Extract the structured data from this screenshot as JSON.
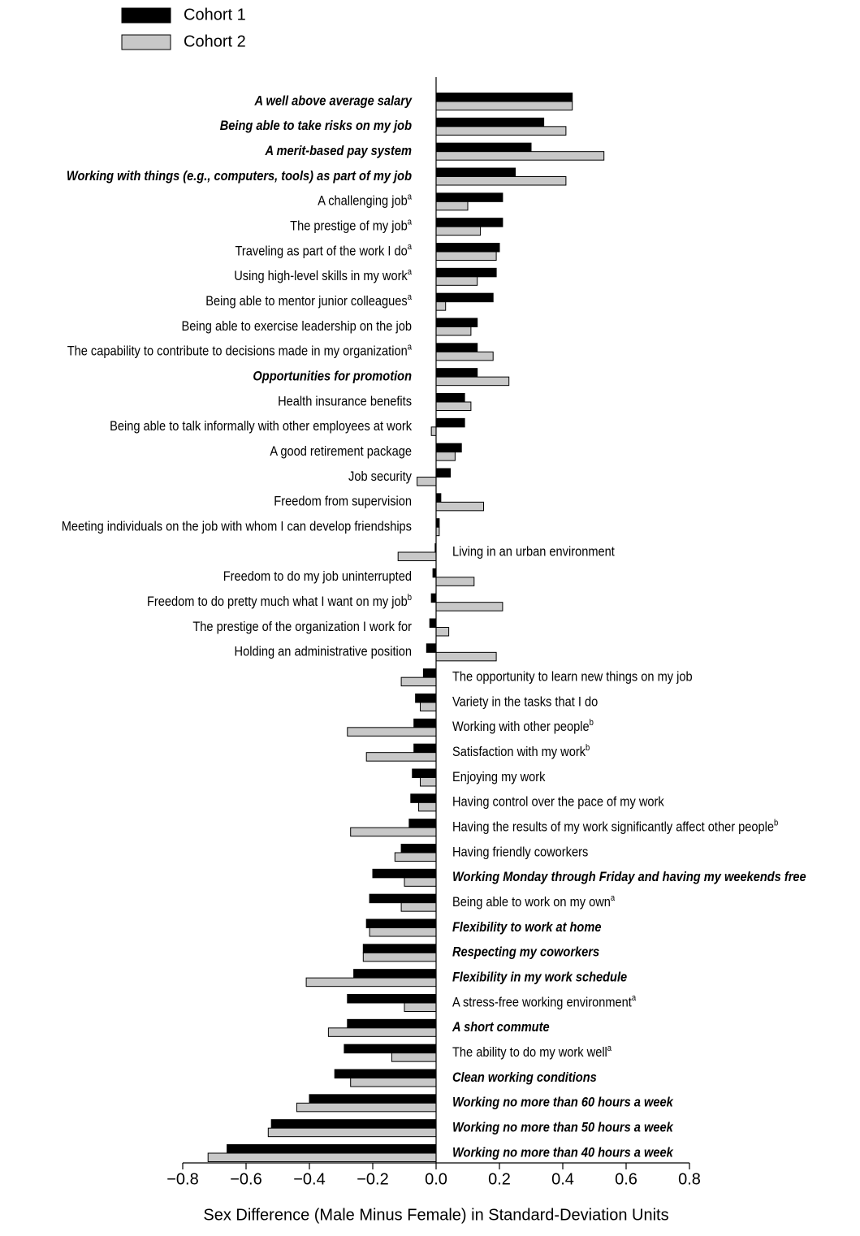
{
  "chart_data": {
    "type": "hbar",
    "x_axis_label": "Sex Difference (Male Minus Female) in Standard-Deviation Units",
    "categories": [
      "A well above average salary",
      "Being able to take risks on my job",
      "A merit-based pay system",
      "Working with things (e.g., computers, tools) as part of my job",
      "A challenging job",
      "The prestige of my job",
      "Traveling as part of the work I do",
      "Using high-level skills in my work",
      "Being able to mentor junior colleagues",
      "Being able to exercise leadership on the job",
      "The capability to contribute to decisions made in my organization",
      "Opportunities for promotion",
      "Health insurance benefits",
      "Being able to talk informally with other employees at work",
      "A good retirement package",
      "Job security",
      "Freedom from supervision",
      "Meeting individuals on the job with whom I can develop friendships",
      "Living in an urban environment",
      "Freedom to do my job uninterrupted",
      "Freedom to do pretty much what I want on my job",
      "The prestige of the organization I work for",
      "Holding an administrative position",
      "The opportunity to learn new things on my job",
      "Variety in the tasks that I do",
      "Working with other people",
      "Satisfaction with my work",
      "Enjoying my work",
      "Having control over the pace of my work",
      "Having the results of my work significantly affect other people",
      "Having friendly coworkers",
      "Working Monday through Friday and having my weekends free",
      "Being able to work on my own",
      "Flexibility to work at home",
      "Respecting my coworkers",
      "Flexibility in my work schedule",
      "A stress-free working environment",
      "A short commute",
      "The ability to do my work well",
      "Clean working conditions",
      "Working no more than 60 hours a week",
      "Working no more than 50 hours a week",
      "Working no more than 40 hours a week"
    ],
    "category_notes": [
      null,
      null,
      null,
      null,
      "a",
      "a",
      "a",
      "a",
      "a",
      null,
      "a",
      null,
      null,
      null,
      null,
      null,
      null,
      null,
      null,
      null,
      "b",
      null,
      null,
      null,
      null,
      "b",
      "b",
      null,
      null,
      "b",
      null,
      null,
      "a",
      null,
      null,
      null,
      "a",
      null,
      "a",
      null,
      null,
      null,
      null
    ],
    "category_bold": [
      true,
      true,
      true,
      true,
      false,
      false,
      false,
      false,
      false,
      false,
      false,
      true,
      false,
      false,
      false,
      false,
      false,
      false,
      false,
      false,
      false,
      false,
      false,
      false,
      false,
      false,
      false,
      false,
      false,
      false,
      false,
      true,
      false,
      true,
      true,
      true,
      false,
      true,
      false,
      true,
      true,
      true,
      true
    ],
    "series": [
      {
        "name": "Cohort 1",
        "color": "#000000",
        "values": [
          0.43,
          0.34,
          0.3,
          0.25,
          0.21,
          0.21,
          0.2,
          0.19,
          0.18,
          0.13,
          0.13,
          0.13,
          0.09,
          0.09,
          0.08,
          0.045,
          0.015,
          0.01,
          -0.003,
          -0.01,
          -0.015,
          -0.02,
          -0.03,
          -0.04,
          -0.065,
          -0.07,
          -0.07,
          -0.075,
          -0.08,
          -0.085,
          -0.11,
          -0.2,
          -0.21,
          -0.22,
          -0.23,
          -0.26,
          -0.28,
          -0.28,
          -0.29,
          -0.32,
          -0.4,
          -0.52,
          -0.66
        ]
      },
      {
        "name": "Cohort 2",
        "color": "#c8c8c8",
        "values": [
          0.43,
          0.41,
          0.53,
          0.41,
          0.1,
          0.14,
          0.19,
          0.13,
          0.03,
          0.11,
          0.18,
          0.23,
          0.11,
          -0.015,
          0.06,
          -0.06,
          0.15,
          0.01,
          -0.12,
          0.12,
          0.21,
          0.04,
          0.19,
          -0.11,
          -0.05,
          -0.28,
          -0.22,
          -0.05,
          -0.055,
          -0.27,
          -0.13,
          -0.1,
          -0.11,
          -0.21,
          -0.23,
          -0.41,
          -0.1,
          -0.34,
          -0.14,
          -0.27,
          -0.44,
          -0.53,
          -0.72
        ]
      }
    ],
    "xlim": [
      -0.8,
      0.8
    ],
    "xticks": [
      {
        "value": -0.8,
        "label": "−0.8"
      },
      {
        "value": -0.6,
        "label": "−0.6"
      },
      {
        "value": -0.4,
        "label": "−0.4"
      },
      {
        "value": -0.2,
        "label": "−0.2"
      },
      {
        "value": 0,
        "label": "0.0"
      },
      0.2,
      0.4,
      0.6,
      0.8
    ],
    "legend": "top-left"
  }
}
